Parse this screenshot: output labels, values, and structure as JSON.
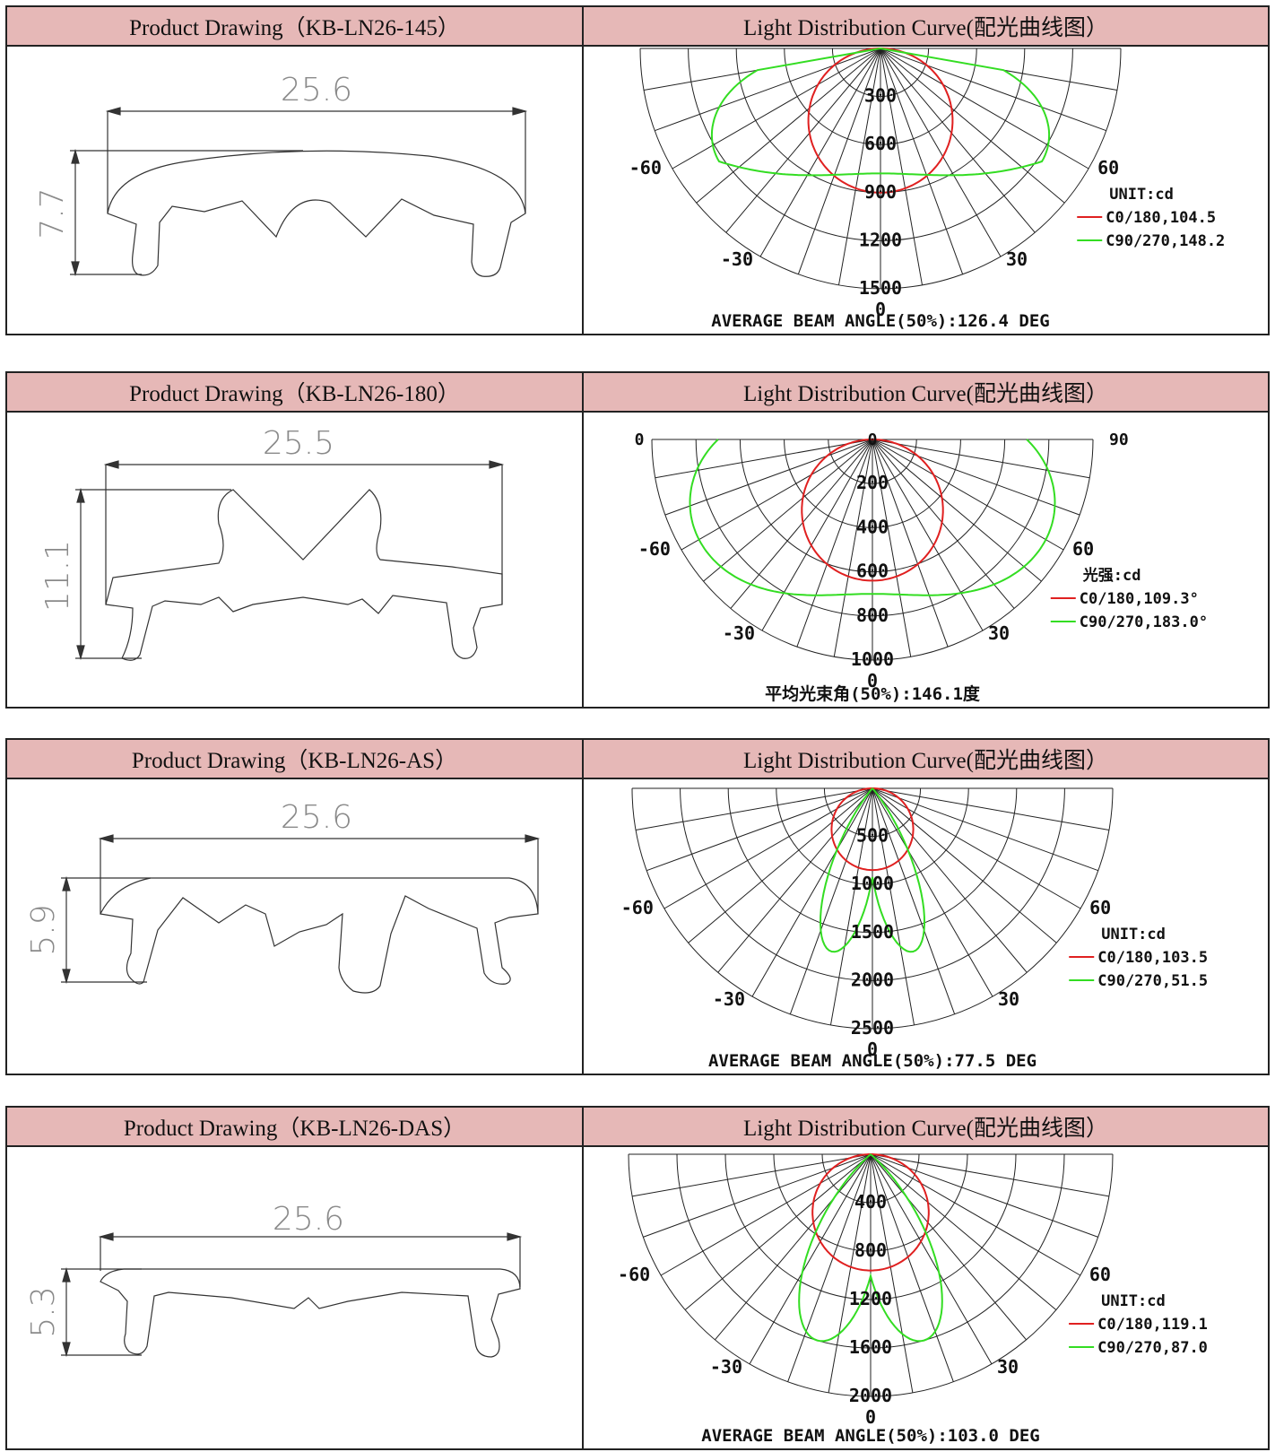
{
  "sections": [
    {
      "drawing_title": "Product Drawing（KB-LN26-145）",
      "curve_title": "Light Distribution Curve(配光曲线图）",
      "width_dim": "25.6",
      "height_dim": "7.7",
      "ring_labels": [
        "300",
        "600",
        "900",
        "1200",
        "1500"
      ],
      "angle_labels": {
        "left60": "-60",
        "right60": "60",
        "left30": "-30",
        "right30": "30",
        "bottom": "0"
      },
      "top_labels": {
        "left": "",
        "center": "",
        "right": ""
      },
      "unit_label": "UNIT:cd",
      "legend": [
        {
          "label": "C0/180,104.5",
          "color": "#e02020"
        },
        {
          "label": "C90/270,148.2",
          "color": "#33dd22"
        }
      ],
      "beam_angle_text": "AVERAGE BEAM ANGLE(50%):126.4 DEG"
    },
    {
      "drawing_title": "Product Drawing（KB-LN26-180）",
      "curve_title": "Light Distribution Curve(配光曲线图）",
      "width_dim": "25.5",
      "height_dim": "11.1",
      "ring_labels": [
        "200",
        "400",
        "600",
        "800",
        "1000"
      ],
      "angle_labels": {
        "left60": "-60",
        "right60": "60",
        "left30": "-30",
        "right30": "30",
        "bottom": "0"
      },
      "top_labels": {
        "left": "0",
        "center": "0",
        "right": "90"
      },
      "unit_label": "光强:cd",
      "legend": [
        {
          "label": "C0/180,109.3°",
          "color": "#e02020"
        },
        {
          "label": "C90/270,183.0°",
          "color": "#33dd22"
        }
      ],
      "beam_angle_text": "平均光束角(50%):146.1度"
    },
    {
      "drawing_title": "Product Drawing（KB-LN26-AS）",
      "curve_title": "Light Distribution Curve(配光曲线图）",
      "width_dim": "25.6",
      "height_dim": "5.9",
      "ring_labels": [
        "500",
        "1000",
        "1500",
        "2000",
        "2500"
      ],
      "angle_labels": {
        "left60": "-60",
        "right60": "60",
        "left30": "-30",
        "right30": "30",
        "bottom": "0"
      },
      "top_labels": {
        "left": "",
        "center": "",
        "right": ""
      },
      "unit_label": "UNIT:cd",
      "legend": [
        {
          "label": "C0/180,103.5",
          "color": "#e02020"
        },
        {
          "label": "C90/270,51.5",
          "color": "#33dd22"
        }
      ],
      "beam_angle_text": "AVERAGE BEAM ANGLE(50%):77.5 DEG"
    },
    {
      "drawing_title": "Product Drawing（KB-LN26-DAS）",
      "curve_title": "Light Distribution Curve(配光曲线图）",
      "width_dim": "25.6",
      "height_dim": "5.3",
      "ring_labels": [
        "400",
        "800",
        "1200",
        "1600",
        "2000"
      ],
      "angle_labels": {
        "left60": "-60",
        "right60": "60",
        "left30": "-30",
        "right30": "30",
        "bottom": "0"
      },
      "top_labels": {
        "left": "",
        "center": "",
        "right": ""
      },
      "unit_label": "UNIT:cd",
      "legend": [
        {
          "label": "C0/180,119.1",
          "color": "#e02020"
        },
        {
          "label": "C90/270,87.0",
          "color": "#33dd22"
        }
      ],
      "beam_angle_text": "AVERAGE BEAM ANGLE(50%):103.0 DEG"
    }
  ]
}
